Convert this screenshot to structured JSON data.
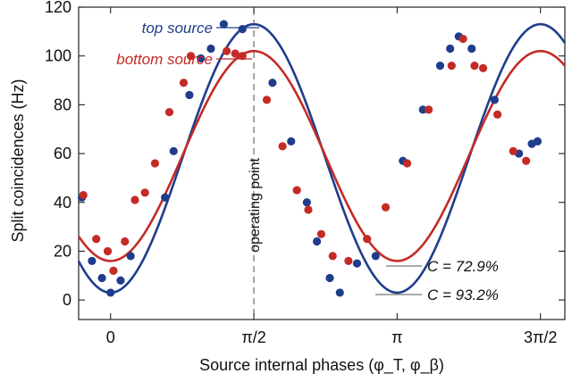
{
  "chart_data": {
    "type": "line",
    "title": "",
    "xlabel": "Source internal phases (φ_T, φ_β)",
    "ylabel": "Split coincidences (Hz)",
    "xlim": [
      -0.35,
      3.2
    ],
    "ylim": [
      -8,
      120
    ],
    "x_ticks": [
      {
        "value": 0,
        "label": "0"
      },
      {
        "value": 1.5708,
        "label": "π/2"
      },
      {
        "value": 3.1416,
        "label": "π"
      },
      {
        "value": 4.7124,
        "label": "3π/2"
      }
    ],
    "y_ticks": [
      0,
      20,
      40,
      60,
      80,
      100,
      120
    ],
    "grid": false,
    "series": [
      {
        "name": "top source",
        "color": "#1f3d8c",
        "fit": {
          "mean": 58.0,
          "amplitude": 55.0,
          "phase_center": 1.5708,
          "period": 3.1416
        },
        "points": [
          [
            -0.2,
            42
          ],
          [
            -0.13,
            16
          ],
          [
            -0.06,
            9
          ],
          [
            0.0,
            3
          ],
          [
            0.07,
            8
          ],
          [
            0.14,
            18
          ],
          [
            0.38,
            42
          ],
          [
            0.44,
            61
          ],
          [
            0.55,
            84
          ],
          [
            0.63,
            99
          ],
          [
            0.7,
            103
          ],
          [
            0.79,
            113
          ],
          [
            0.92,
            111
          ],
          [
            1.13,
            89
          ],
          [
            1.26,
            65
          ],
          [
            1.37,
            40
          ],
          [
            1.44,
            24
          ],
          [
            1.53,
            9
          ],
          [
            1.6,
            3
          ],
          [
            1.72,
            15
          ],
          [
            1.85,
            18
          ],
          [
            2.04,
            57
          ],
          [
            2.18,
            78
          ],
          [
            2.3,
            96
          ],
          [
            2.37,
            103
          ],
          [
            2.43,
            108
          ],
          [
            2.52,
            103
          ],
          [
            2.68,
            82
          ],
          [
            2.85,
            60
          ],
          [
            2.94,
            64
          ],
          [
            2.98,
            65
          ]
        ]
      },
      {
        "name": "bottom source",
        "color": "#c42b26",
        "fit": {
          "mean": 59.0,
          "amplitude": 43.0,
          "phase_center": 1.5708,
          "period": 3.1416
        },
        "points": [
          [
            -0.19,
            43
          ],
          [
            -0.1,
            25
          ],
          [
            -0.02,
            20
          ],
          [
            0.02,
            12
          ],
          [
            0.1,
            24
          ],
          [
            0.17,
            41
          ],
          [
            0.24,
            44
          ],
          [
            0.31,
            56
          ],
          [
            0.41,
            77
          ],
          [
            0.51,
            89
          ],
          [
            0.56,
            100
          ],
          [
            0.81,
            102
          ],
          [
            0.87,
            101
          ],
          [
            0.92,
            100
          ],
          [
            1.09,
            82
          ],
          [
            1.2,
            63
          ],
          [
            1.3,
            45
          ],
          [
            1.38,
            37
          ],
          [
            1.47,
            27
          ],
          [
            1.55,
            18
          ],
          [
            1.66,
            16
          ],
          [
            1.79,
            25
          ],
          [
            1.92,
            38
          ],
          [
            2.07,
            56
          ],
          [
            2.22,
            78
          ],
          [
            2.38,
            96
          ],
          [
            2.46,
            107
          ],
          [
            2.54,
            96
          ],
          [
            2.6,
            95
          ],
          [
            2.7,
            76
          ],
          [
            2.81,
            61
          ],
          [
            2.9,
            57
          ]
        ]
      }
    ],
    "annotations": [
      {
        "text": "top source",
        "color": "#1f3d8c"
      },
      {
        "text": "bottom source",
        "color": "#c42b26"
      },
      {
        "text": "operating point",
        "x": 1.5708
      },
      {
        "text": "C = 72.9%",
        "color": "#111111"
      },
      {
        "text": "C = 93.2%",
        "color": "#111111"
      }
    ]
  }
}
